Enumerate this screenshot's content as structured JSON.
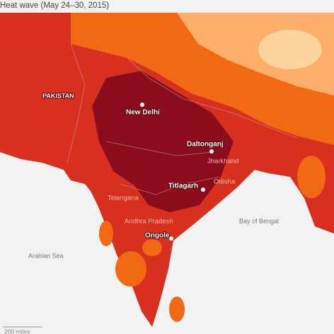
{
  "title": "Heat wave (May 24–30, 2015)",
  "countries": [
    "PAKISTAN"
  ],
  "cities": [
    "New Delhi",
    "Daltonganj",
    "Titlagarh",
    "Ongole"
  ],
  "regions": [
    "Jharkhand",
    "Odisha",
    "Telangana",
    "Andhra Pradesh"
  ],
  "water": [
    "Bay of Bengal",
    "Arabian Sea"
  ],
  "scale": "200 miles"
}
